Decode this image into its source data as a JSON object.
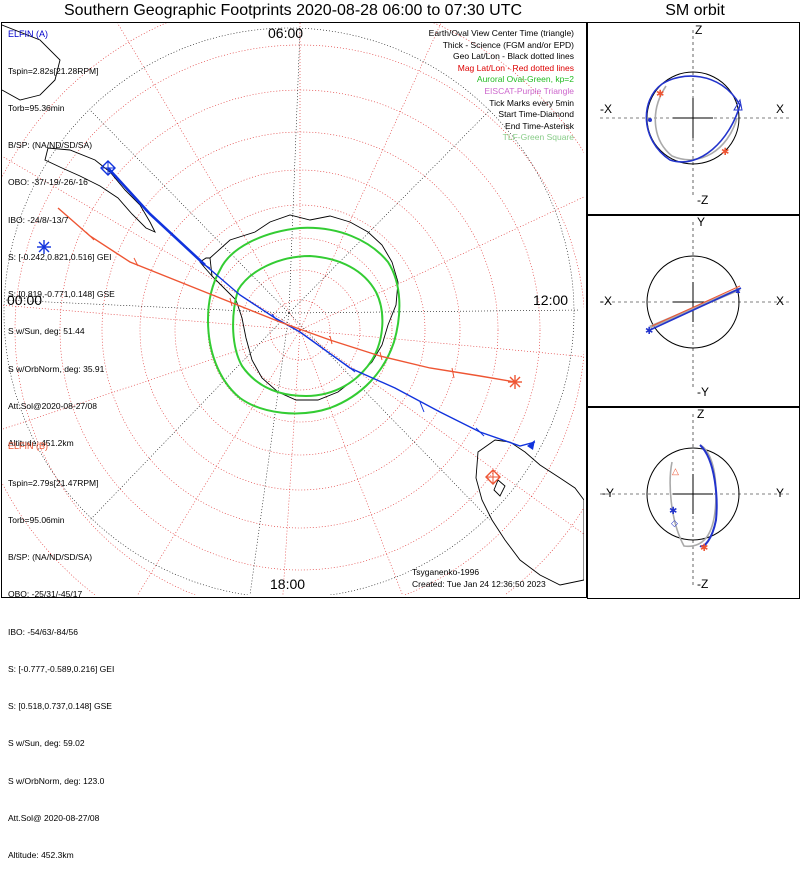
{
  "title": "Southern Geographic Footprints 2020-08-28 06:00 to 07:30 UTC",
  "sm_title": "SM orbit",
  "clock_labels": {
    "top": "06:00",
    "left": "00:00",
    "right": "12:00",
    "bottom": "18:00"
  },
  "elfin_a": {
    "header": "ELFIN (A)",
    "lines": [
      "Tspin=2.82s[21.28RPM]",
      "Torb=95.36min",
      "B/SP: (NA/ND/SD/SA)",
      "OBO: -37/-19/-26/-16",
      "IBO: -24/8/-13/7",
      "S: [-0.242,0.821,0.516] GEI",
      "S: [0.819,-0.771,0.148] GSE",
      "S w/Sun, deg: 51.44",
      "S w/OrbNorm, deg: 35.91",
      "Att.Sol@2020-08-27/08",
      "Altitude: 451.2km"
    ],
    "color": "#0000cc"
  },
  "elfin_b": {
    "header": "ELFIN (B)",
    "lines": [
      "Tspin=2.79s[21.47RPM]",
      "Torb=95.06min",
      "B/SP: (NA/ND/SD/SA)",
      "OBO: -25/31/-45/17",
      "IBO: -54/63/-84/56",
      "S: [-0.777,-0.589,0.216] GEI",
      "S: [0.518,0.737,0.148] GSE",
      "S w/Sun, deg: 59.02",
      "S w/OrbNorm, deg: 123.0",
      "Att.Sol@ 2020-08-27/08",
      "Altitude: 452.3km"
    ],
    "color": "#ee5533"
  },
  "legend": [
    {
      "text": "Earth/Oval View Center Time (triangle)",
      "color": "#000000"
    },
    {
      "text": "Thick - Science (FGM and/or EPD)",
      "color": "#000000"
    },
    {
      "text": "Geo Lat/Lon - Black dotted lines",
      "color": "#000000"
    },
    {
      "text": "Mag Lat/Lon - Red dotted lines",
      "color": "#dd0000"
    },
    {
      "text": "Auroral Oval-Green, kp=2",
      "color": "#22bb22"
    },
    {
      "text": "EISCAT-Purple Triangle",
      "color": "#cc66cc"
    },
    {
      "text": "Tick Marks every 5min",
      "color": "#000000"
    },
    {
      "text": "Start Time-Diamond",
      "color": "#000000"
    },
    {
      "text": "End Time-Asterisk",
      "color": "#000000"
    },
    {
      "text": "TLF-Green Square",
      "color": "#88cc88"
    }
  ],
  "footer": {
    "model": "Tsyganenko-1996",
    "created": "Created: Tue Jan 24 12:36:50 2023"
  },
  "sm_panels": [
    {
      "axes": {
        "top": "Z",
        "bottom": "-Z",
        "left": "-X",
        "right": "X"
      }
    },
    {
      "axes": {
        "top": "Y",
        "bottom": "-Y",
        "left": "-X",
        "right": "X"
      }
    },
    {
      "axes": {
        "top": "Z",
        "bottom": "-Z",
        "left": "-Y",
        "right": "Y"
      }
    }
  ]
}
